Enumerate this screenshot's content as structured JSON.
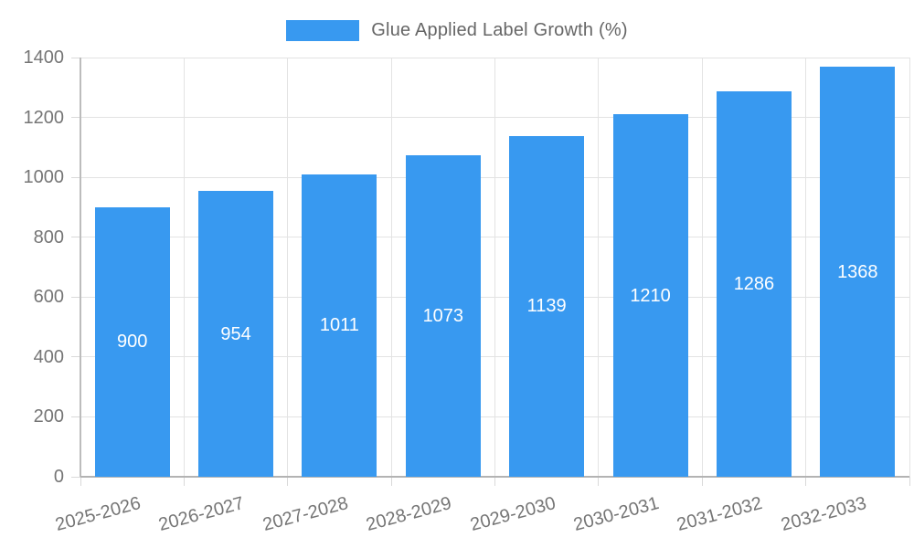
{
  "colors": {
    "bar": "#3899F0",
    "grid": "#e3e3e3",
    "tick_mark": "#d9d9d9",
    "axis": "#b3b3b3",
    "tick_text": "#757575",
    "legend_text": "#666666",
    "bar_value_text": "#ffffff",
    "background": "#ffffff"
  },
  "chart_data": {
    "type": "bar",
    "title": "",
    "legend": [
      {
        "label": "Glue Applied Label Growth (%)",
        "color": "#3899F0"
      }
    ],
    "legend_position": "top-center",
    "categories": [
      "2025-2026",
      "2026-2027",
      "2027-2028",
      "2028-2029",
      "2029-2030",
      "2030-2031",
      "2031-2032",
      "2032-2033"
    ],
    "values": [
      900,
      954,
      1011,
      1073,
      1139,
      1210,
      1286,
      1368
    ],
    "data_labels": [
      "900",
      "954",
      "1011",
      "1073",
      "1139",
      "1210",
      "1286",
      "1368"
    ],
    "xlabel": "",
    "ylabel": "",
    "ylim": [
      0,
      1400
    ],
    "yticks": [
      0,
      200,
      400,
      600,
      800,
      1000,
      1200,
      1400
    ],
    "ytick_labels": [
      "0",
      "200",
      "400",
      "600",
      "800",
      "1000",
      "1200",
      "1400"
    ],
    "grid": true,
    "x_label_rotation_deg": -15
  }
}
